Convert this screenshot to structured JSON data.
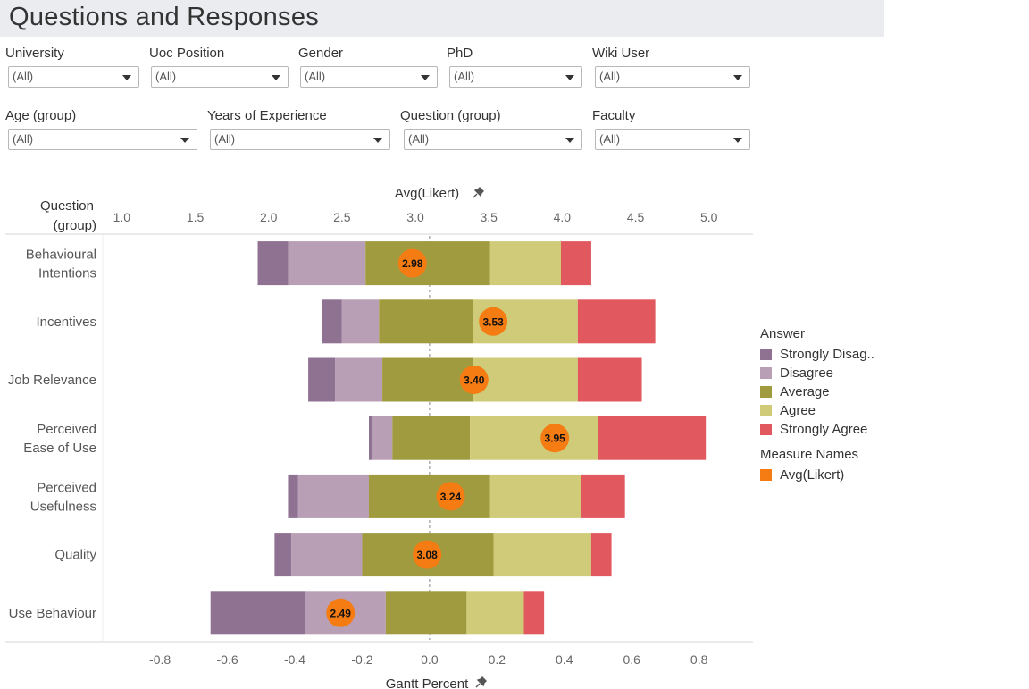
{
  "title": "Questions and Responses",
  "filters": [
    {
      "label": "University",
      "value": "(All)"
    },
    {
      "label": "Uoc Position",
      "value": "(All)"
    },
    {
      "label": "Gender",
      "value": "(All)"
    },
    {
      "label": "PhD",
      "value": "(All)"
    },
    {
      "label": "Wiki User",
      "value": "(All)"
    },
    {
      "label": "Age (group)",
      "value": "(All)"
    },
    {
      "label": "Years of Experience",
      "value": "(All)"
    },
    {
      "label": "Question (group)",
      "value": "(All)"
    },
    {
      "label": "Faculty",
      "value": "(All)"
    }
  ],
  "legend": {
    "answer_title": "Answer",
    "answers": [
      {
        "label": "Strongly Disag..",
        "color": "#8f7192"
      },
      {
        "label": "Disagree",
        "color": "#b99fb5"
      },
      {
        "label": "Average",
        "color": "#a09b3f"
      },
      {
        "label": "Agree",
        "color": "#cfcb79"
      },
      {
        "label": "Strongly Agree",
        "color": "#e1585e"
      }
    ],
    "measure_title": "Measure Names",
    "measures": [
      {
        "label": "Avg(Likert)",
        "color": "#f57c12"
      }
    ]
  },
  "chart_data": {
    "type": "bar",
    "subtype": "diverging-stacked-bar-with-dot",
    "row_header": [
      "Question",
      "(group)"
    ],
    "top_axis": {
      "label": "Avg(Likert)",
      "range": [
        0.87,
        5.3
      ],
      "ticks": [
        "1.0",
        "1.5",
        "2.0",
        "2.5",
        "3.0",
        "3.5",
        "4.0",
        "4.5",
        "5.0"
      ]
    },
    "bottom_axis": {
      "label": "Gantt Percent",
      "range": [
        -0.97,
        0.96
      ],
      "ticks": [
        "-0.8",
        "-0.6",
        "-0.4",
        "-0.2",
        "0.0",
        "0.2",
        "0.4",
        "0.6",
        "0.8"
      ]
    },
    "answer_order": [
      "Strongly Disagree",
      "Disagree",
      "Average",
      "Agree",
      "Strongly Agree"
    ],
    "rows": [
      {
        "name": [
          "Behavioural",
          "Intentions"
        ],
        "start": -0.51,
        "segments": [
          0.09,
          0.23,
          0.37,
          0.21,
          0.09
        ],
        "avg": 2.98,
        "avg_label": "2.98"
      },
      {
        "name": [
          "Incentives"
        ],
        "start": -0.32,
        "segments": [
          0.06,
          0.11,
          0.28,
          0.31,
          0.23
        ],
        "avg": 3.53,
        "avg_label": "3.53"
      },
      {
        "name": [
          "Job Relevance"
        ],
        "start": -0.36,
        "segments": [
          0.08,
          0.14,
          0.27,
          0.31,
          0.19
        ],
        "avg": 3.4,
        "avg_label": "3.40"
      },
      {
        "name": [
          "Perceived",
          "Ease of Use"
        ],
        "start": -0.18,
        "segments": [
          0.01,
          0.06,
          0.23,
          0.38,
          0.32
        ],
        "avg": 3.95,
        "avg_label": "3.95"
      },
      {
        "name": [
          "Perceived",
          "Usefulness"
        ],
        "start": -0.42,
        "segments": [
          0.03,
          0.21,
          0.36,
          0.27,
          0.13
        ],
        "avg": 3.24,
        "avg_label": "3.24"
      },
      {
        "name": [
          "Quality"
        ],
        "start": -0.46,
        "segments": [
          0.05,
          0.21,
          0.39,
          0.29,
          0.06
        ],
        "avg": 3.08,
        "avg_label": "3.08"
      },
      {
        "name": [
          "Use Behaviour"
        ],
        "start": -0.65,
        "segments": [
          0.28,
          0.24,
          0.24,
          0.17,
          0.06
        ],
        "avg": 2.49,
        "avg_label": "2.49"
      }
    ]
  }
}
